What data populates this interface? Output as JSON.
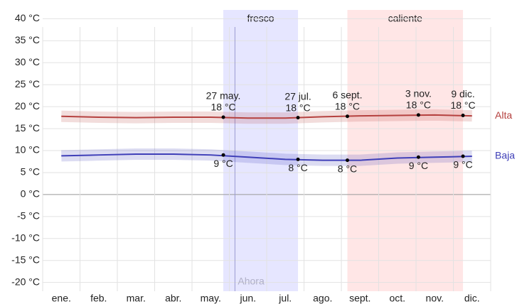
{
  "chart_data": {
    "type": "line",
    "categories": [
      "ene.",
      "feb.",
      "mar.",
      "abr.",
      "may.",
      "jun.",
      "jul.",
      "ago.",
      "sept.",
      "oct.",
      "nov.",
      "dic."
    ],
    "xlim": [
      0,
      12
    ],
    "ylim": [
      -22,
      42
    ],
    "yticks": [
      {
        "value": 40,
        "label": "40 °C"
      },
      {
        "value": 35,
        "label": "35 °C"
      },
      {
        "value": 30,
        "label": "30 °C"
      },
      {
        "value": 25,
        "label": "25 °C"
      },
      {
        "value": 20,
        "label": "20 °C"
      },
      {
        "value": 15,
        "label": "15 °C"
      },
      {
        "value": 10,
        "label": "10 °C"
      },
      {
        "value": 5,
        "label": "5 °C"
      },
      {
        "value": 0,
        "label": "0 °C"
      },
      {
        "value": -5,
        "label": "-5 °C"
      },
      {
        "value": -10,
        "label": "-10 °C"
      },
      {
        "value": -15,
        "label": "-15 °C"
      },
      {
        "value": -20,
        "label": "-20 °C"
      }
    ],
    "grid": true,
    "series": [
      {
        "name": "Alta",
        "color": "#b5413f",
        "values": [
          17.8,
          17.6,
          17.5,
          17.6,
          17.6,
          17.4,
          17.4,
          17.7,
          17.9,
          18.0,
          18.1,
          17.9
        ]
      },
      {
        "name": "Baja",
        "color": "#3f3fb8",
        "values": [
          8.8,
          9.0,
          9.2,
          9.2,
          9.0,
          8.5,
          8.0,
          7.8,
          7.8,
          8.3,
          8.5,
          8.7
        ]
      }
    ],
    "seasons": [
      {
        "label": "fresco",
        "start": "27 may.",
        "end": "27 jul.",
        "color": "#e6e6ff"
      },
      {
        "label": "caliente",
        "start": "6 sept.",
        "end": "9 dic.",
        "color": "#ffe6e6"
      }
    ],
    "now": {
      "label": "Ahora",
      "x": 5.15
    },
    "annotations": [
      {
        "date": "27 may.",
        "high": 17.6,
        "high_label": "18 °C",
        "low": 9.0,
        "low_label": "9 °C"
      },
      {
        "date": "27 jul.",
        "high": 17.5,
        "high_label": "18 °C",
        "low": 8.0,
        "low_label": "8 °C"
      },
      {
        "date": "6 sept.",
        "high": 17.8,
        "high_label": "18 °C",
        "low": 7.8,
        "low_label": "8 °C"
      },
      {
        "date": "3 nov.",
        "high": 18.1,
        "high_label": "18 °C",
        "low": 8.5,
        "low_label": "9 °C"
      },
      {
        "date": "9 dic.",
        "high": 18.0,
        "high_label": "18 °C",
        "low": 8.7,
        "low_label": "9 °C"
      }
    ]
  }
}
